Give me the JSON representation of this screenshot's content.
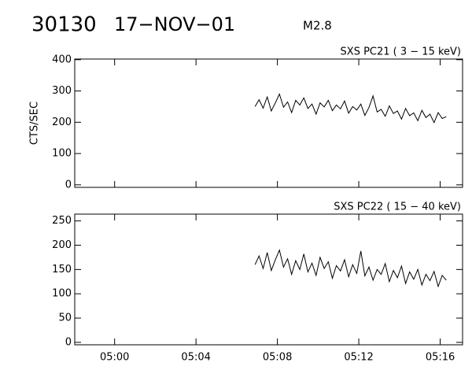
{
  "header": {
    "event": "30130",
    "date": "17−NOV−01",
    "class": "M2.8"
  },
  "chart_data": [
    {
      "type": "line",
      "title": "SXS PC21  (  3 − 15 keV)",
      "y_label": "CTS/SEC",
      "xlim": [
        -1.96,
        17.1
      ],
      "xticks": [
        0,
        4,
        8,
        12,
        16
      ],
      "ylim": [
        -8,
        402
      ],
      "yticks": [
        0,
        100,
        200,
        300,
        400
      ],
      "x": [
        6.9,
        7.1,
        7.3,
        7.5,
        7.7,
        7.9,
        8.1,
        8.3,
        8.5,
        8.7,
        8.9,
        9.1,
        9.3,
        9.5,
        9.7,
        9.9,
        10.1,
        10.3,
        10.5,
        10.7,
        10.9,
        11.1,
        11.3,
        11.5,
        11.7,
        11.9,
        12.1,
        12.3,
        12.5,
        12.7,
        12.9,
        13.1,
        13.3,
        13.5,
        13.7,
        13.9,
        14.1,
        14.3,
        14.5,
        14.7,
        14.9,
        15.1,
        15.3,
        15.5,
        15.7,
        15.9,
        16.1,
        16.3
      ],
      "series": [
        {
          "color": "#000000",
          "values": [
            250,
            272,
            245,
            281,
            236,
            262,
            290,
            248,
            265,
            231,
            270,
            255,
            278,
            244,
            258,
            226,
            262,
            249,
            270,
            237,
            255,
            243,
            268,
            229,
            250,
            239,
            258,
            222,
            247,
            284,
            233,
            241,
            219,
            252,
            228,
            236,
            210,
            244,
            221,
            230,
            205,
            238,
            215,
            226,
            199,
            231,
            212,
            218
          ]
        }
      ]
    },
    {
      "type": "line",
      "title": "SXS PC22  ( 15 − 40 keV)",
      "xlim": [
        -1.96,
        17.1
      ],
      "xticks": [
        {
          "value": 0,
          "label": "05:00"
        },
        {
          "value": 4,
          "label": "05:04"
        },
        {
          "value": 8,
          "label": "05:08"
        },
        {
          "value": 12,
          "label": "05:12"
        },
        {
          "value": 16,
          "label": "05:16"
        }
      ],
      "ylim": [
        -5,
        264
      ],
      "yticks": [
        0,
        50,
        100,
        150,
        200,
        250
      ],
      "x": [
        6.9,
        7.1,
        7.3,
        7.5,
        7.7,
        7.9,
        8.1,
        8.3,
        8.5,
        8.7,
        8.9,
        9.1,
        9.3,
        9.5,
        9.7,
        9.9,
        10.1,
        10.3,
        10.5,
        10.7,
        10.9,
        11.1,
        11.3,
        11.5,
        11.7,
        11.9,
        12.1,
        12.3,
        12.5,
        12.7,
        12.9,
        13.1,
        13.3,
        13.5,
        13.7,
        13.9,
        14.1,
        14.3,
        14.5,
        14.7,
        14.9,
        15.1,
        15.3,
        15.5,
        15.7,
        15.9,
        16.1,
        16.3
      ],
      "series": [
        {
          "color": "#000000",
          "values": [
            160,
            178,
            152,
            185,
            148,
            170,
            190,
            155,
            172,
            140,
            168,
            150,
            182,
            145,
            163,
            138,
            175,
            152,
            166,
            132,
            158,
            147,
            170,
            135,
            160,
            142,
            188,
            137,
            155,
            128,
            150,
            140,
            162,
            125,
            148,
            133,
            157,
            121,
            145,
            130,
            150,
            118,
            140,
            127,
            146,
            115,
            138,
            128
          ]
        }
      ]
    }
  ]
}
